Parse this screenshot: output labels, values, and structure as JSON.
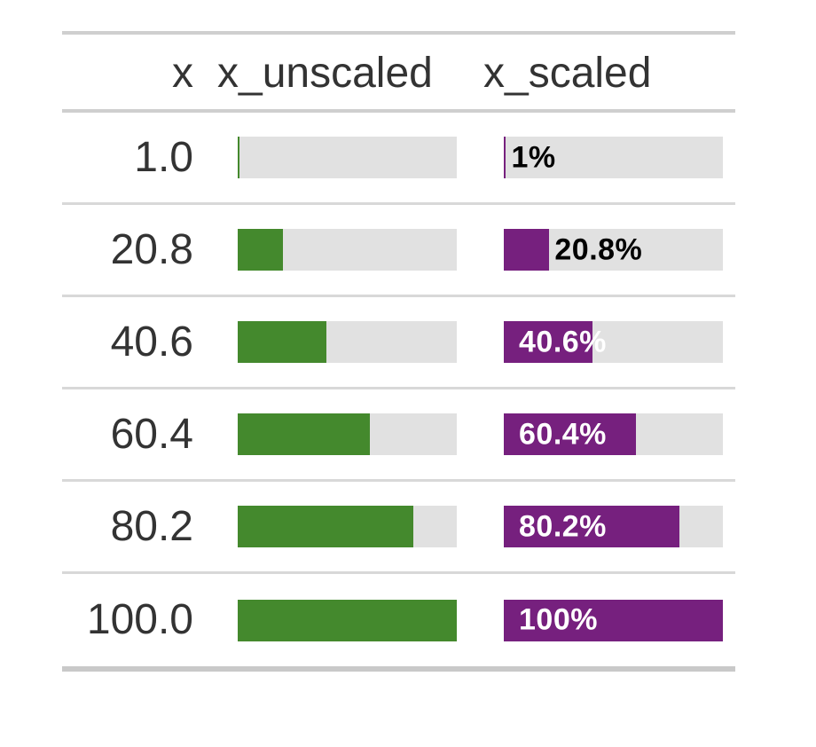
{
  "chart_data": {
    "type": "table",
    "columns": [
      "x",
      "x_unscaled",
      "x_scaled"
    ],
    "x_values": [
      1.0,
      20.8,
      40.6,
      60.4,
      80.2,
      100.0
    ],
    "series": [
      {
        "name": "x_unscaled",
        "type": "bar",
        "values": [
          1.0,
          20.8,
          40.6,
          60.4,
          80.2,
          100.0
        ],
        "axis_range": [
          0,
          100
        ],
        "color": "#44892D",
        "background": "#E1E1E1",
        "labels_shown": false
      },
      {
        "name": "x_scaled",
        "type": "bar",
        "values": [
          1.0,
          20.8,
          40.6,
          60.4,
          80.2,
          100.0
        ],
        "axis_range": [
          0,
          100
        ],
        "color": "#76207E",
        "background": "#E1E1E1",
        "labels_shown": true,
        "labels": [
          "1%",
          "20.8%",
          "40.6%",
          "60.4%",
          "80.2%",
          "100%"
        ]
      }
    ],
    "legend_position": "none",
    "grid": false
  },
  "table": {
    "header": {
      "x": "x",
      "x_unscaled": "x_unscaled",
      "x_scaled": "x_scaled"
    },
    "rows": [
      {
        "x": "1.0",
        "unscaled_pct": 1.0,
        "scaled_pct": 1.0,
        "scaled_label": "1%",
        "label_placement": "outside"
      },
      {
        "x": "20.8",
        "unscaled_pct": 20.8,
        "scaled_pct": 20.8,
        "scaled_label": "20.8%",
        "label_placement": "outside"
      },
      {
        "x": "40.6",
        "unscaled_pct": 40.6,
        "scaled_pct": 40.6,
        "scaled_label": "40.6%",
        "label_placement": "inside"
      },
      {
        "x": "60.4",
        "unscaled_pct": 60.4,
        "scaled_pct": 60.4,
        "scaled_label": "60.4%",
        "label_placement": "inside"
      },
      {
        "x": "80.2",
        "unscaled_pct": 80.2,
        "scaled_pct": 80.2,
        "scaled_label": "80.2%",
        "label_placement": "inside"
      },
      {
        "x": "100.0",
        "unscaled_pct": 100.0,
        "scaled_pct": 100.0,
        "scaled_label": "100%",
        "label_placement": "inside"
      }
    ],
    "colors": {
      "unscaled_fill": "#44892D",
      "scaled_fill": "#76207E",
      "bar_background": "#E1E1E1",
      "label_inside": "#FFFFFF",
      "label_outside": "#000000",
      "text": "#333333",
      "border_heavy": "#CFCFCF",
      "border_row": "#D8D8D8",
      "border_bottom": "#C9C9C9"
    }
  }
}
